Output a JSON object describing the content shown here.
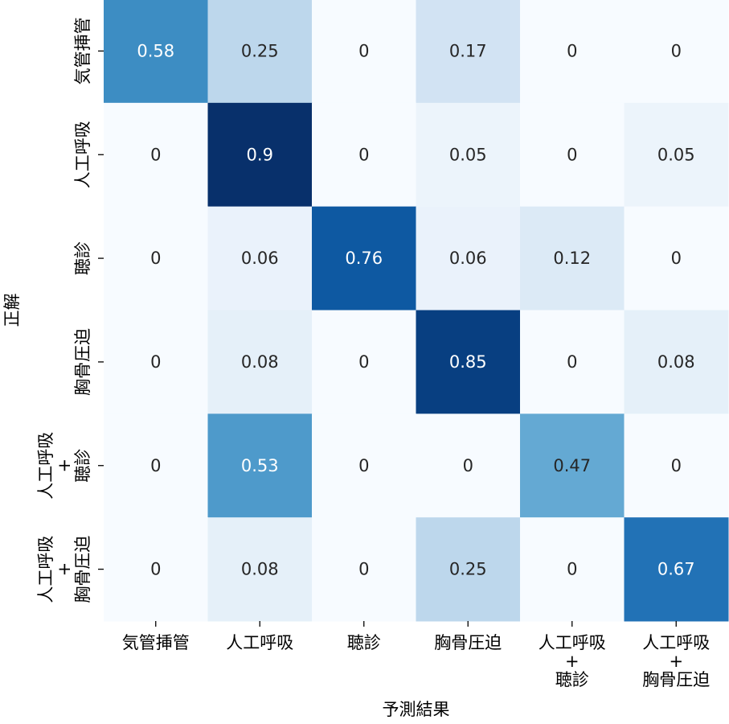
{
  "chart_data": {
    "type": "heatmap",
    "xlabel": "予測結果",
    "ylabel": "正解",
    "x_categories": [
      [
        "気管挿管"
      ],
      [
        "人工呼吸"
      ],
      [
        "聴診"
      ],
      [
        "胸骨圧迫"
      ],
      [
        "人工呼吸",
        "+",
        "聴診"
      ],
      [
        "人工呼吸",
        "+",
        "胸骨圧迫"
      ]
    ],
    "y_categories": [
      [
        "気管挿管"
      ],
      [
        "人工呼吸"
      ],
      [
        "聴診"
      ],
      [
        "胸骨圧迫"
      ],
      [
        "人工呼吸",
        "+",
        "聴診"
      ],
      [
        "人工呼吸",
        "+",
        "胸骨圧迫"
      ]
    ],
    "matrix": [
      [
        "0.58",
        "0.25",
        "0",
        "0.17",
        "0",
        "0"
      ],
      [
        "0",
        "0.9",
        "0",
        "0.05",
        "0",
        "0.05"
      ],
      [
        "0",
        "0.06",
        "0.76",
        "0.06",
        "0.12",
        "0"
      ],
      [
        "0",
        "0.08",
        "0",
        "0.85",
        "0",
        "0.08"
      ],
      [
        "0",
        "0.53",
        "0",
        "0",
        "0.47",
        "0"
      ],
      [
        "0",
        "0.08",
        "0",
        "0.25",
        "0",
        "0.67"
      ]
    ],
    "colormap": "Blues",
    "vmin": 0,
    "vmax": 0.9,
    "grid": false,
    "legend": "none"
  }
}
